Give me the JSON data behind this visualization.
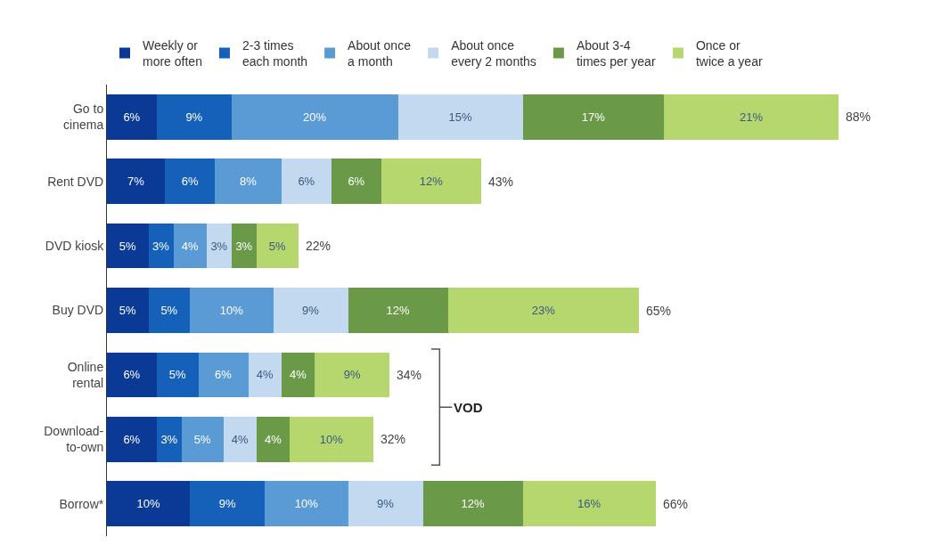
{
  "chart_data": {
    "type": "bar",
    "orientation": "horizontal",
    "stacked": true,
    "legend": "top",
    "tick_labels": "y",
    "categories": [
      "Go to\ncinema",
      "Rent DVD",
      "DVD kiosk",
      "Buy DVD",
      "Online\nrental",
      "Download-\nto-own",
      "Borrow*"
    ],
    "series": [
      {
        "name": "Weekly or\nmore often",
        "color": "#0a3a96",
        "values": [
          6,
          7,
          5,
          5,
          6,
          6,
          10
        ],
        "value_labels": [
          "6%",
          "7%",
          "5%",
          "5%",
          "6%",
          "6%",
          "10%"
        ]
      },
      {
        "name": "2-3 times\neach month",
        "color": "#1560b8",
        "values": [
          9,
          6,
          3,
          5,
          5,
          3,
          9
        ],
        "value_labels": [
          "9%",
          "6%",
          "3%",
          "5%",
          "5%",
          "3%",
          "9%"
        ]
      },
      {
        "name": "About once\na month",
        "color": "#5b9bd5",
        "values": [
          20,
          8,
          4,
          10,
          6,
          5,
          10
        ],
        "value_labels": [
          "20%",
          "8%",
          "4%",
          "10%",
          "6%",
          "5%",
          "10%"
        ]
      },
      {
        "name": "About once\nevery 2 months",
        "color": "#c3d9ef",
        "values": [
          15,
          6,
          3,
          9,
          4,
          4,
          9
        ],
        "value_labels": [
          "15%",
          "6%",
          "3%",
          "9%",
          "4%",
          "4%",
          "9%"
        ]
      },
      {
        "name": "About 3-4\ntimes per year",
        "color": "#6a9a48",
        "values": [
          17,
          6,
          3,
          12,
          4,
          4,
          12
        ],
        "value_labels": [
          "17%",
          "6%",
          "3%",
          "12%",
          "4%",
          "4%",
          "12%"
        ]
      },
      {
        "name": "Once or\ntwice a year",
        "color": "#b5d76e",
        "values": [
          21,
          12,
          5,
          23,
          9,
          10,
          16
        ],
        "value_labels": [
          "21%",
          "12%",
          "5%",
          "23%",
          "9%",
          "10%",
          "16%"
        ]
      }
    ],
    "totals": [
      "88%",
      "43%",
      "22%",
      "65%",
      "34%",
      "32%",
      "66%"
    ],
    "annotations": [
      "VOD"
    ]
  }
}
